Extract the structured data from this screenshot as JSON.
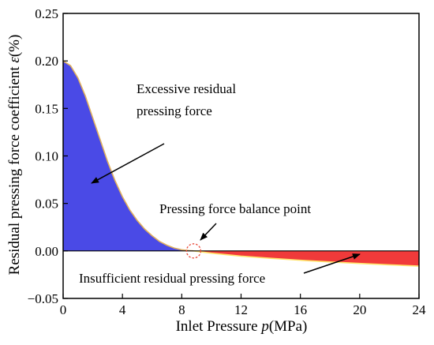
{
  "chart_data": {
    "type": "area",
    "xlabel": "Inlet Pressure p(MPa)",
    "xlabel_plain": "Inlet Pressure ",
    "xlabel_var": "p",
    "xlabel_unit": "(MPa)",
    "ylabel": "Residual pressing force coefficient ε(%)",
    "ylabel_plain": "Residual pressing force coefficient ",
    "ylabel_var": "ε",
    "ylabel_unit": "(%)",
    "xlim": [
      0,
      24
    ],
    "ylim": [
      -0.05,
      0.25
    ],
    "x_ticks": [
      "0",
      "4",
      "8",
      "12",
      "16",
      "20",
      "24"
    ],
    "y_ticks": [
      "−0.05",
      "0.00",
      "0.05",
      "0.10",
      "0.15",
      "0.20",
      "0.25"
    ],
    "x_tick_values": [
      0,
      4,
      8,
      12,
      16,
      20,
      24
    ],
    "y_tick_values": [
      -0.05,
      0,
      0.05,
      0.1,
      0.15,
      0.2,
      0.25
    ],
    "grid": false,
    "series": [
      {
        "color": "#4a4ae6",
        "line_color": "#e0b060",
        "points": [
          [
            0,
            0.2
          ],
          [
            0.5,
            0.195
          ],
          [
            1,
            0.182
          ],
          [
            1.5,
            0.163
          ],
          [
            2,
            0.14
          ],
          [
            2.5,
            0.117
          ],
          [
            3,
            0.094
          ],
          [
            3.5,
            0.074
          ],
          [
            4,
            0.057
          ],
          [
            4.5,
            0.043
          ],
          [
            5,
            0.032
          ],
          [
            5.5,
            0.023
          ],
          [
            6,
            0.016
          ],
          [
            6.5,
            0.01
          ],
          [
            7,
            0.006
          ],
          [
            7.5,
            0.003
          ],
          [
            8,
            0.0012
          ],
          [
            8.5,
            0.0003
          ],
          [
            8.8,
            0.0
          ]
        ]
      },
      {
        "color": "#f03a3a",
        "line_color": "#ffe36a",
        "points": [
          [
            8.8,
            0.0
          ],
          [
            10,
            -0.0024
          ],
          [
            12,
            -0.0055
          ],
          [
            14,
            -0.0078
          ],
          [
            16,
            -0.0098
          ],
          [
            18,
            -0.0116
          ],
          [
            20,
            -0.0132
          ],
          [
            22,
            -0.0146
          ],
          [
            24,
            -0.016
          ]
        ]
      }
    ],
    "balance_point": [
      8.8,
      0.0
    ],
    "annotations": {
      "excessive_line1": "Excessive residual",
      "excessive_line2": "pressing force",
      "balance": "Pressing force balance point",
      "insufficient": "Insufficient residual pressing force"
    }
  }
}
